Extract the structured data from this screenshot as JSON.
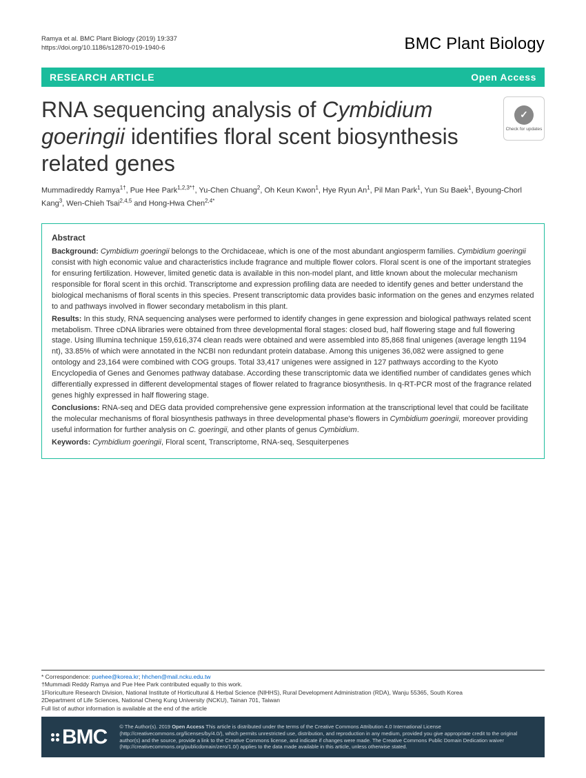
{
  "header": {
    "citation_line1": "Ramya et al. BMC Plant Biology        (2019) 19:337",
    "doi": "https://doi.org/10.1186/s12870-019-1940-6",
    "journal": "BMC Plant Biology"
  },
  "bar": {
    "left": "RESEARCH ARTICLE",
    "right": "Open Access"
  },
  "title": {
    "pre": "RNA sequencing analysis of ",
    "ital1": "Cymbidium goeringii",
    "post": " identifies floral scent biosynthesis related genes"
  },
  "crossmark": {
    "label": "Check for updates"
  },
  "authors_html": "Mummadireddy Ramya<span class='sup'>1†</span>, Pue Hee Park<span class='sup'>1,2,3*†</span>, Yu-Chen Chuang<span class='sup'>2</span>, Oh Keun Kwon<span class='sup'>1</span>, Hye Ryun An<span class='sup'>1</span>, Pil Man Park<span class='sup'>1</span>, Yun Su Baek<span class='sup'>1</span>, Byoung-Chorl Kang<span class='sup'>3</span>, Wen-Chieh Tsai<span class='sup'>2,4,5</span> and Hong-Hwa Chen<span class='sup'>2,4*</span>",
  "abstract": {
    "heading": "Abstract",
    "background_label": "Background: ",
    "background_text_a": "Cymbidium goeringii",
    "background_text_b": " belongs to the Orchidaceae, which is one of the most abundant angiosperm families. ",
    "background_text_c": "Cymbidium goeringii",
    "background_text_d": " consist with high economic value and characteristics include fragrance and multiple flower colors. Floral scent is one of the important strategies for ensuring fertilization. However, limited genetic data is available in this non-model plant, and little known about the molecular mechanism responsible for floral scent in this orchid. Transcriptome and expression profiling data are needed to identify genes and better understand the biological mechanisms of floral scents in this species. Present transcriptomic data provides basic information on the genes and enzymes related to and pathways involved in flower secondary metabolism in this plant.",
    "results_label": "Results: ",
    "results_text": "In this study, RNA sequencing analyses were performed to identify changes in gene expression and biological pathways related scent metabolism. Three cDNA libraries were obtained from three developmental floral stages: closed bud, half flowering stage and full flowering stage. Using Illumina technique 159,616,374 clean reads were obtained and were assembled into 85,868 final unigenes (average length 1194 nt), 33.85% of which were annotated in the NCBI non redundant protein database. Among this unigenes 36,082 were assigned to gene ontology and 23,164 were combined with COG groups. Total 33,417 unigenes were assigned in 127 pathways according to the Kyoto Encyclopedia of Genes and Genomes pathway database. According these transcriptomic data we identified number of candidates genes which differentially expressed in different developmental stages of flower related to fragrance biosynthesis. In q-RT-PCR most of the fragrance related genes highly expressed in half flowering stage.",
    "conclusions_label": "Conclusions: ",
    "conclusions_text_a": "RNA-seq and DEG data provided comprehensive gene expression information at the transcriptional level that could be facilitate the molecular mechanisms of floral biosynthesis pathways in three developmental phase's flowers in ",
    "conclusions_text_b": "Cymbidium goeringii,",
    "conclusions_text_c": " moreover providing useful information for further analysis on ",
    "conclusions_text_d": "C. goeringii,",
    "conclusions_text_e": " and other plants of genus ",
    "conclusions_text_f": "Cymbidium",
    "conclusions_text_g": ".",
    "keywords_label": "Keywords: ",
    "keywords_text_a": "Cymbidium goeringii",
    "keywords_text_b": ", Floral scent, Transcriptome, RNA-seq, Sesquiterpenes"
  },
  "footnotes": {
    "corr_label": "* Correspondence: ",
    "email1": "puehee@korea.kr",
    "sep": "; ",
    "email2": "hhchen@mail.ncku.edu.tw",
    "equal": "†Mummadi Reddy Ramya and Pue Hee Park contributed equally to this work.",
    "aff1": "1Floriculture Research Division, National Institute of Horticultural & Herbal Science (NIHHS), Rural Development Administration (RDA), Wanju 55365, South Korea",
    "aff2": "2Department of Life Sciences, National Cheng Kung University (NCKU), Tainan 701, Taiwan",
    "full": "Full list of author information is available at the end of the article"
  },
  "license": {
    "text_a": "© The Author(s). 2019 ",
    "bold": "Open Access",
    "text_b": " This article is distributed under the terms of the Creative Commons Attribution 4.0 International License (",
    "link1": "http://creativecommons.org/licenses/by/4.0/",
    "text_c": "), which permits unrestricted use, distribution, and reproduction in any medium, provided you give appropriate credit to the original author(s) and the source, provide a link to the Creative Commons license, and indicate if changes were made. The Creative Commons Public Domain Dedication waiver (",
    "link2": "http://creativecommons.org/publicdomain/zero/1.0/",
    "text_d": ") applies to the data made available in this article, unless otherwise stated."
  }
}
